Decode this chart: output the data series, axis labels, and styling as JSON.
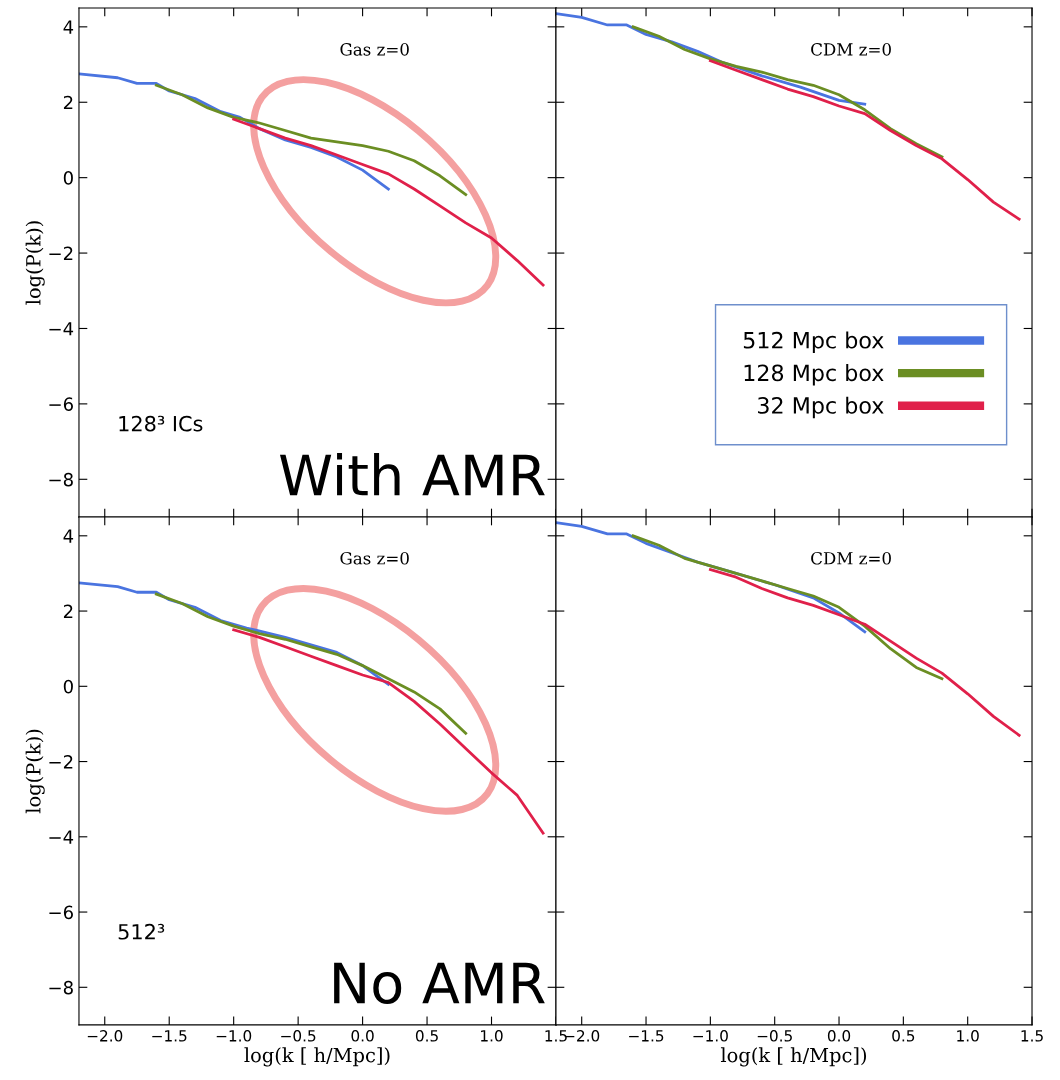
{
  "chart_data": [
    {
      "type": "line",
      "ylabel": "log(P(k))",
      "xlim": [
        -2.2,
        1.5
      ],
      "ylim": [
        -9,
        4.5
      ],
      "tick_labels": "y",
      "legend": false,
      "grid": false,
      "xticks": [
        -2.0,
        -1.5,
        -1.0,
        -0.5,
        0.0,
        0.5,
        1.0,
        1.5
      ],
      "yticks": [
        {
          "value": -8,
          "label": "−8"
        },
        {
          "value": -6,
          "label": "−6"
        },
        {
          "value": -4,
          "label": "−4"
        },
        {
          "value": -2,
          "label": "−2"
        },
        0,
        2,
        4
      ],
      "annotations": [
        "Gas z=0",
        "128³ ICs",
        "With AMR"
      ],
      "series": [
        {
          "color": "#4a74e0",
          "x": [
            -2.2,
            -1.9,
            -1.75,
            -1.6,
            -1.5,
            -1.3,
            -1.1,
            -0.95,
            -0.8,
            -0.6,
            -0.4,
            -0.2,
            0.0,
            0.1,
            0.2
          ],
          "values": [
            2.75,
            2.65,
            2.5,
            2.5,
            2.3,
            2.1,
            1.75,
            1.6,
            1.3,
            1.0,
            0.8,
            0.55,
            0.2,
            -0.05,
            -0.3
          ]
        },
        {
          "color": "#6b8e23",
          "x": [
            -1.6,
            -1.4,
            -1.2,
            -1.0,
            -0.8,
            -0.6,
            -0.4,
            -0.2,
            0.0,
            0.2,
            0.4,
            0.6,
            0.8
          ],
          "values": [
            2.45,
            2.2,
            1.85,
            1.6,
            1.45,
            1.25,
            1.05,
            0.95,
            0.85,
            0.7,
            0.45,
            0.05,
            -0.45
          ]
        },
        {
          "color": "#e0204a",
          "x": [
            -1.0,
            -0.8,
            -0.6,
            -0.4,
            -0.2,
            0.0,
            0.2,
            0.4,
            0.6,
            0.8,
            1.0,
            1.2,
            1.4
          ],
          "values": [
            1.55,
            1.3,
            1.05,
            0.85,
            0.6,
            0.35,
            0.1,
            -0.3,
            -0.75,
            -1.2,
            -1.6,
            -2.2,
            -2.85
          ]
        }
      ]
    },
    {
      "type": "line",
      "xlim": [
        -2.2,
        1.5
      ],
      "ylim": [
        -9,
        4.5
      ],
      "tick_labels": false,
      "legend": "lower right",
      "grid": false,
      "xticks": [
        -2.0,
        -1.5,
        -1.0,
        -0.5,
        0.0,
        0.5,
        1.0,
        1.5
      ],
      "yticks": [
        -8,
        -6,
        -4,
        -2,
        0,
        2,
        4
      ],
      "annotations": [
        "CDM z=0"
      ],
      "series": [
        {
          "name": "512 Mpc box",
          "color": "#4a74e0",
          "x": [
            -2.2,
            -2.0,
            -1.8,
            -1.65,
            -1.5,
            -1.3,
            -1.1,
            -0.9,
            -0.6,
            -0.3,
            0.0,
            0.2
          ],
          "values": [
            4.35,
            4.25,
            4.05,
            4.05,
            3.8,
            3.6,
            3.35,
            3.05,
            2.7,
            2.4,
            2.05,
            1.95
          ]
        },
        {
          "name": "128 Mpc box",
          "color": "#6b8e23",
          "x": [
            -1.6,
            -1.4,
            -1.2,
            -1.0,
            -0.8,
            -0.6,
            -0.4,
            -0.2,
            0.0,
            0.2,
            0.4,
            0.6,
            0.8
          ],
          "values": [
            4.0,
            3.75,
            3.4,
            3.15,
            2.95,
            2.8,
            2.6,
            2.45,
            2.2,
            1.8,
            1.3,
            0.9,
            0.55
          ]
        },
        {
          "name": "32 Mpc box",
          "color": "#e0204a",
          "x": [
            -1.0,
            -0.8,
            -0.6,
            -0.4,
            -0.2,
            0.0,
            0.2,
            0.4,
            0.6,
            0.8,
            1.0,
            1.2,
            1.4
          ],
          "values": [
            3.1,
            2.85,
            2.6,
            2.35,
            2.15,
            1.9,
            1.7,
            1.25,
            0.85,
            0.5,
            -0.05,
            -0.65,
            -1.1
          ]
        }
      ]
    },
    {
      "type": "line",
      "xlabel": "log(k [ h/Mpc])",
      "ylabel": "log(P(k))",
      "xlim": [
        -2.2,
        1.5
      ],
      "ylim": [
        -9,
        4.5
      ],
      "legend": false,
      "grid": false,
      "xticks": [
        {
          "value": -2.0,
          "label": "−2.0"
        },
        {
          "value": -1.5,
          "label": "−1.5"
        },
        {
          "value": -1.0,
          "label": "−1.0"
        },
        {
          "value": -0.5,
          "label": "−0.5"
        },
        {
          "value": 0.0,
          "label": "0.0"
        },
        {
          "value": 0.5,
          "label": "0.5"
        },
        {
          "value": 1.0,
          "label": "1.0"
        },
        {
          "value": 1.5,
          "label": "1.5"
        }
      ],
      "yticks": [
        {
          "value": -8,
          "label": "−8"
        },
        {
          "value": -6,
          "label": "−6"
        },
        {
          "value": -4,
          "label": "−4"
        },
        {
          "value": -2,
          "label": "−2"
        },
        0,
        2,
        4
      ],
      "annotations": [
        "Gas z=0",
        "512³",
        "No AMR"
      ],
      "series": [
        {
          "color": "#4a74e0",
          "x": [
            -2.2,
            -1.9,
            -1.75,
            -1.6,
            -1.5,
            -1.3,
            -1.1,
            -0.9,
            -0.6,
            -0.4,
            -0.2,
            0.0,
            0.1,
            0.2
          ],
          "values": [
            2.75,
            2.65,
            2.5,
            2.5,
            2.3,
            2.1,
            1.75,
            1.55,
            1.3,
            1.1,
            0.9,
            0.55,
            0.3,
            0.05
          ]
        },
        {
          "color": "#6b8e23",
          "x": [
            -1.6,
            -1.4,
            -1.2,
            -1.0,
            -0.8,
            -0.6,
            -0.4,
            -0.2,
            0.0,
            0.2,
            0.4,
            0.6,
            0.8
          ],
          "values": [
            2.45,
            2.2,
            1.85,
            1.6,
            1.4,
            1.25,
            1.05,
            0.85,
            0.55,
            0.2,
            -0.15,
            -0.6,
            -1.25
          ]
        },
        {
          "color": "#e0204a",
          "x": [
            -1.0,
            -0.8,
            -0.6,
            -0.4,
            -0.2,
            0.0,
            0.2,
            0.4,
            0.6,
            0.8,
            1.0,
            1.2,
            1.4
          ],
          "values": [
            1.5,
            1.3,
            1.05,
            0.8,
            0.55,
            0.3,
            0.1,
            -0.4,
            -1.0,
            -1.65,
            -2.3,
            -2.9,
            -3.9
          ]
        }
      ]
    },
    {
      "type": "line",
      "xlabel": "log(k [ h/Mpc])",
      "xlim": [
        -2.2,
        1.5
      ],
      "ylim": [
        -9,
        4.5
      ],
      "tick_labels": "x",
      "legend": false,
      "grid": false,
      "xticks": [
        {
          "value": -2.0,
          "label": "−2.0"
        },
        {
          "value": -1.5,
          "label": "−1.5"
        },
        {
          "value": -1.0,
          "label": "−1.0"
        },
        {
          "value": -0.5,
          "label": "−0.5"
        },
        {
          "value": 0.0,
          "label": "0.0"
        },
        {
          "value": 0.5,
          "label": "0.5"
        },
        {
          "value": 1.0,
          "label": "1.0"
        },
        {
          "value": 1.5,
          "label": "1.5"
        }
      ],
      "yticks": [
        -8,
        -6,
        -4,
        -2,
        0,
        2,
        4
      ],
      "annotations": [
        "CDM z=0"
      ],
      "series": [
        {
          "color": "#4a74e0",
          "x": [
            -2.2,
            -2.0,
            -1.8,
            -1.65,
            -1.5,
            -1.3,
            -1.1,
            -0.8,
            -0.5,
            -0.2,
            0.0,
            0.1,
            0.2
          ],
          "values": [
            4.35,
            4.25,
            4.05,
            4.05,
            3.8,
            3.55,
            3.3,
            3.0,
            2.7,
            2.35,
            1.95,
            1.7,
            1.45
          ]
        },
        {
          "color": "#6b8e23",
          "x": [
            -1.6,
            -1.4,
            -1.2,
            -1.0,
            -0.8,
            -0.6,
            -0.4,
            -0.2,
            0.0,
            0.2,
            0.4,
            0.6,
            0.8
          ],
          "values": [
            4.0,
            3.75,
            3.4,
            3.2,
            3.0,
            2.8,
            2.6,
            2.4,
            2.1,
            1.6,
            1.0,
            0.5,
            0.2
          ]
        },
        {
          "color": "#e0204a",
          "x": [
            -1.0,
            -0.8,
            -0.6,
            -0.4,
            -0.2,
            0.0,
            0.2,
            0.4,
            0.6,
            0.8,
            1.0,
            1.2,
            1.4
          ],
          "values": [
            3.1,
            2.9,
            2.6,
            2.35,
            2.15,
            1.9,
            1.65,
            1.2,
            0.75,
            0.35,
            -0.2,
            -0.8,
            -1.3
          ]
        }
      ]
    }
  ]
}
